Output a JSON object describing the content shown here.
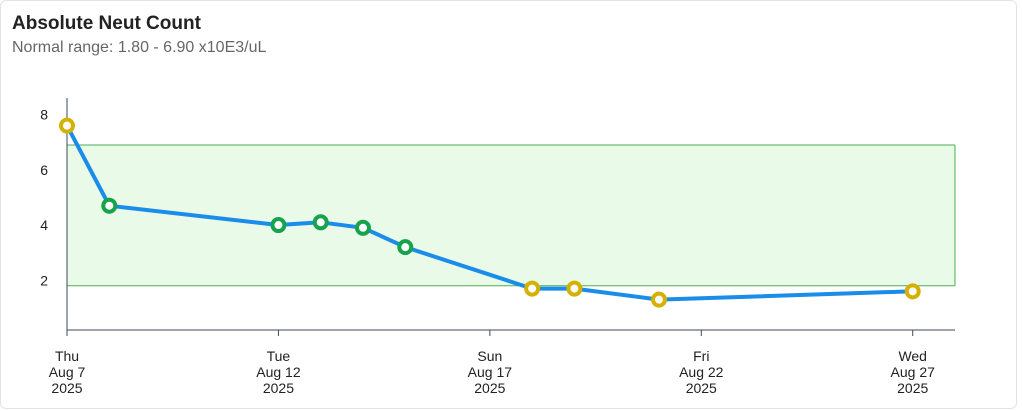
{
  "header": {
    "title": "Absolute Neut Count",
    "subtitle": "Normal range: 1.80 - 6.90 x10E3/uL"
  },
  "colors": {
    "line": "#1a8cea",
    "normal_band_fill": "#e9fae9",
    "normal_band_stroke": "#4caf50",
    "in_range_marker": "#16a34a",
    "out_of_range_marker": "#d4b000",
    "axis": "#3b4a5c"
  },
  "chart_data": {
    "type": "line",
    "title": "Absolute Neut Count",
    "subtitle": "Normal range: 1.80 - 6.90 x10E3/uL",
    "unit": "x10E3/uL",
    "normal_range": [
      1.8,
      6.9
    ],
    "y_ticks": [
      2,
      4,
      6,
      8
    ],
    "ylim": [
      0.2,
      8.6
    ],
    "xlim": [
      "2025-08-07",
      "2025-08-28"
    ],
    "x_ticks": [
      {
        "date": "2025-08-07",
        "lines": [
          "Thu",
          "Aug 7",
          "2025"
        ]
      },
      {
        "date": "2025-08-12",
        "lines": [
          "Tue",
          "Aug 12",
          "2025"
        ]
      },
      {
        "date": "2025-08-17",
        "lines": [
          "Sun",
          "Aug 17",
          "2025"
        ]
      },
      {
        "date": "2025-08-22",
        "lines": [
          "Fri",
          "Aug 22",
          "2025"
        ]
      },
      {
        "date": "2025-08-27",
        "lines": [
          "Wed",
          "Aug 27",
          "2025"
        ]
      }
    ],
    "series": [
      {
        "points": [
          {
            "x": "2025-08-07",
            "y": 7.6,
            "in_range": false
          },
          {
            "x": "2025-08-08",
            "y": 4.7,
            "in_range": true
          },
          {
            "x": "2025-08-12",
            "y": 4.0,
            "in_range": true
          },
          {
            "x": "2025-08-13",
            "y": 4.1,
            "in_range": true
          },
          {
            "x": "2025-08-14",
            "y": 3.9,
            "in_range": true
          },
          {
            "x": "2025-08-15",
            "y": 3.2,
            "in_range": true
          },
          {
            "x": "2025-08-18",
            "y": 1.7,
            "in_range": false
          },
          {
            "x": "2025-08-19",
            "y": 1.7,
            "in_range": false
          },
          {
            "x": "2025-08-21",
            "y": 1.3,
            "in_range": false
          },
          {
            "x": "2025-08-27",
            "y": 1.6,
            "in_range": false
          }
        ]
      }
    ],
    "grid": false,
    "legend": "none"
  }
}
